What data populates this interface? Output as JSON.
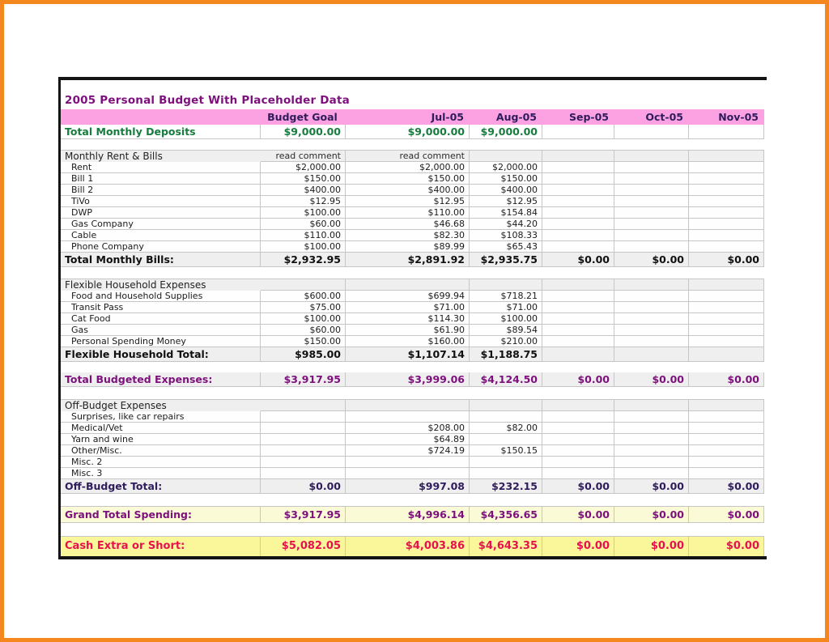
{
  "title": "2005 Personal Budget With Placeholder Data",
  "columns": {
    "label_header": "",
    "months": [
      "Budget Goal",
      "Jul-05",
      "Aug-05",
      "Sep-05",
      "Oct-05",
      "Nov-05"
    ]
  },
  "deposits_row": {
    "label": "Total Monthly Deposits",
    "values": [
      "$9,000.00",
      "$9,000.00",
      "$9,000.00",
      "",
      "",
      ""
    ]
  },
  "sections": [
    {
      "header": "Monthly Rent & Bills",
      "header_notes": [
        "read comment",
        "read comment",
        "",
        "",
        "",
        ""
      ],
      "rows": [
        {
          "label": "Rent",
          "values": [
            "$2,000.00",
            "$2,000.00",
            "$2,000.00",
            "",
            "",
            ""
          ]
        },
        {
          "label": "Bill 1",
          "values": [
            "$150.00",
            "$150.00",
            "$150.00",
            "",
            "",
            ""
          ]
        },
        {
          "label": "Bill 2",
          "values": [
            "$400.00",
            "$400.00",
            "$400.00",
            "",
            "",
            ""
          ]
        },
        {
          "label": "TiVo",
          "values": [
            "$12.95",
            "$12.95",
            "$12.95",
            "",
            "",
            ""
          ]
        },
        {
          "label": "DWP",
          "values": [
            "$100.00",
            "$110.00",
            "$154.84",
            "",
            "",
            ""
          ]
        },
        {
          "label": "Gas Company",
          "values": [
            "$60.00",
            "$46.68",
            "$44.20",
            "",
            "",
            ""
          ]
        },
        {
          "label": "Cable",
          "values": [
            "$110.00",
            "$82.30",
            "$108.33",
            "",
            "",
            ""
          ]
        },
        {
          "label": "Phone Company",
          "values": [
            "$100.00",
            "$89.99",
            "$65.43",
            "",
            "",
            ""
          ]
        }
      ],
      "total": {
        "label": "Total Monthly Bills:",
        "values": [
          "$2,932.95",
          "$2,891.92",
          "$2,935.75",
          "$0.00",
          "$0.00",
          "$0.00"
        ],
        "style": "t-black"
      }
    },
    {
      "header": "Flexible Household Expenses",
      "header_notes": [
        "",
        "",
        "",
        "",
        "",
        ""
      ],
      "rows": [
        {
          "label": "Food and Household Supplies",
          "values": [
            "$600.00",
            "$699.94",
            "$718.21",
            "",
            "",
            ""
          ]
        },
        {
          "label": "Transit Pass",
          "values": [
            "$75.00",
            "$71.00",
            "$71.00",
            "",
            "",
            ""
          ]
        },
        {
          "label": "Cat Food",
          "values": [
            "$100.00",
            "$114.30",
            "$100.00",
            "",
            "",
            ""
          ]
        },
        {
          "label": "Gas",
          "values": [
            "$60.00",
            "$61.90",
            "$89.54",
            "",
            "",
            ""
          ]
        },
        {
          "label": "Personal Spending Money",
          "values": [
            "$150.00",
            "$160.00",
            "$210.00",
            "",
            "",
            ""
          ]
        }
      ],
      "total": {
        "label": "Flexible Household Total:",
        "values": [
          "$985.00",
          "$1,107.14",
          "$1,188.75",
          "",
          "",
          ""
        ],
        "style": "t-black"
      }
    },
    {
      "header": "Off-Budget Expenses",
      "header_notes": [
        "",
        "",
        "",
        "",
        "",
        ""
      ],
      "rows": [
        {
          "label": "Surprises, like car repairs",
          "values": [
            "",
            "",
            "",
            "",
            "",
            ""
          ]
        },
        {
          "label": "Medical/Vet",
          "values": [
            "",
            "$208.00",
            "$82.00",
            "",
            "",
            ""
          ]
        },
        {
          "label": "Yarn and wine",
          "values": [
            "",
            "$64.89",
            "",
            "",
            "",
            ""
          ]
        },
        {
          "label": "Other/Misc.",
          "values": [
            "",
            "$724.19",
            "$150.15",
            "",
            "",
            ""
          ]
        },
        {
          "label": "Misc. 2",
          "values": [
            "",
            "",
            "",
            "",
            "",
            ""
          ]
        },
        {
          "label": "Misc. 3",
          "values": [
            "",
            "",
            "",
            "",
            "",
            ""
          ]
        }
      ],
      "total": {
        "label": "Off-Budget Total:",
        "values": [
          "$0.00",
          "$997.08",
          "$232.15",
          "$0.00",
          "$0.00",
          "$0.00"
        ],
        "style": "t-darkpurple"
      }
    }
  ],
  "budgeted_total_row": {
    "label": "Total Budgeted Expenses:",
    "values": [
      "$3,917.95",
      "$3,999.06",
      "$4,124.50",
      "$0.00",
      "$0.00",
      "$0.00"
    ]
  },
  "grand_total_row": {
    "label": "Grand Total Spending:",
    "values": [
      "$3,917.95",
      "$4,996.14",
      "$4,356.65",
      "$0.00",
      "$0.00",
      "$0.00"
    ]
  },
  "cash_row": {
    "label": "Cash Extra or Short:",
    "values": [
      "$5,082.05",
      "$4,003.86",
      "$4,643.35",
      "$0.00",
      "$0.00",
      "$0.00"
    ]
  },
  "colors": {
    "frame_orange": "#F4881E",
    "header_pink": "#FCA2E2",
    "budget_goal_text": "#EE1290",
    "month_text": "#2F1C5C",
    "title_purple": "#7D107D",
    "deposits_green": "#177C3D",
    "section_bg": "#EFEFEF",
    "grid_line": "#C6C6C6",
    "grand_total_bg": "#FAFAD6",
    "cash_bg": "#FAF79B",
    "cash_red": "#E8114D",
    "table_border": "#141414"
  }
}
